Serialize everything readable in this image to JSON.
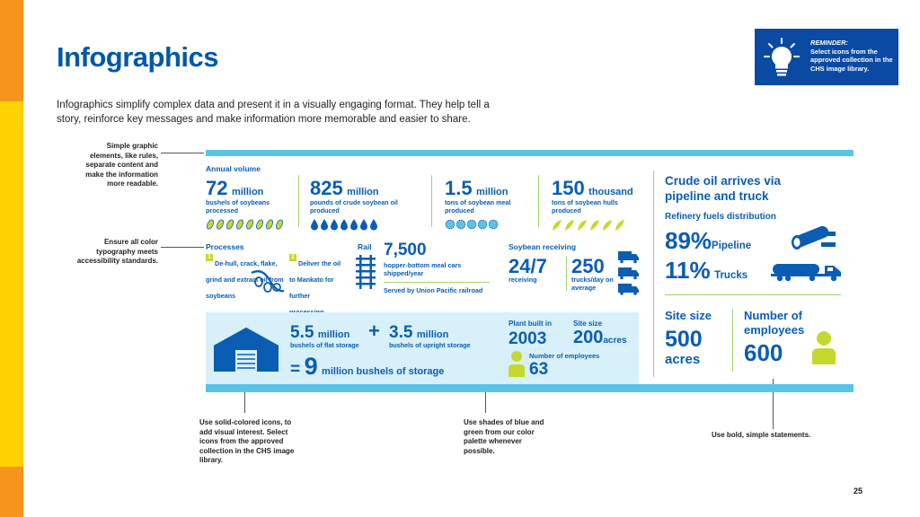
{
  "title": "Infographics",
  "intro": "Infographics simplify complex data and present it in a visually engaging format. They help tell a story, reinforce key messages and make information more memorable and easier to share.",
  "reminder": {
    "heading": "REMINDER:",
    "text": "Select icons from the approved collection in the CHS image library."
  },
  "notes": {
    "rules": "Simple graphic elements, like rules, separate content and make the information more readable.",
    "color": "Ensure all color typography meets accessibility standards.",
    "icons": "Use solid-colored icons, to add visual interest. Select icons from the approved collection in the CHS image library.",
    "shades": "Use shades of blue and green from our color palette whenever possible.",
    "bold": "Use bold, simple statements."
  },
  "annual": {
    "label": "Annual volume",
    "items": [
      {
        "num": "72",
        "unit": "million",
        "desc": "bushels of soybeans processed",
        "icon": "soybean-icon"
      },
      {
        "num": "825",
        "unit": "million",
        "desc": "pounds of crude soybean oil produced",
        "icon": "oil-drop-icon"
      },
      {
        "num": "1.5",
        "unit": "million",
        "desc": "tons of soybean meal produced",
        "icon": "meal-icon"
      },
      {
        "num": "150",
        "unit": "thousand",
        "desc": "tons of soybean hulls produced",
        "icon": "hull-icon"
      }
    ]
  },
  "processes": {
    "label": "Processes",
    "step1": "De-hull, crack, flake, grind and extract oil from soybeans",
    "step2": "Deliver the oil to Mankato for further processing",
    "n1": "1",
    "n2": "2"
  },
  "rail": {
    "label": "Rail",
    "num": "7,500",
    "desc": "hopper-bottom meal cars shipped/year",
    "served": "Served by Union Pacific railroad"
  },
  "receiving": {
    "label": "Soybean receiving",
    "big1": "24/7",
    "sub1": "receiving",
    "big2": "250",
    "sub2": "trucks/day on average"
  },
  "storage": {
    "flat_num": "5.5",
    "flat_unit": "million",
    "flat_desc": "bushels of flat storage",
    "plus": "+",
    "upright_num": "3.5",
    "upright_unit": "million",
    "upright_desc": "bushels of upright storage",
    "eq": "=",
    "total_num": "9",
    "total_text": "million bushels of storage"
  },
  "plant": {
    "built_label": "Plant built in",
    "built": "2003",
    "site_label": "Site size",
    "site": "200",
    "site_unit": "acres",
    "emp_label": "Number of employees",
    "emp": "63"
  },
  "crude": {
    "heading": "Crude oil arrives via pipeline and truck",
    "dist": "Refinery fuels distribution",
    "pct1": "89%",
    "pct1_label": "Pipeline",
    "pct2": "11%",
    "pct2_label": "Trucks"
  },
  "site2": {
    "label": "Site size",
    "num": "500",
    "unit": "acres",
    "emp_label": "Number of employees",
    "emp": "600"
  },
  "page_number": "25",
  "colors": {
    "brand_blue": "#0a5db3",
    "light_blue": "#5ac4e6",
    "green": "#9fd36a",
    "yellow": "#ffd100",
    "orange": "#f7941d"
  }
}
